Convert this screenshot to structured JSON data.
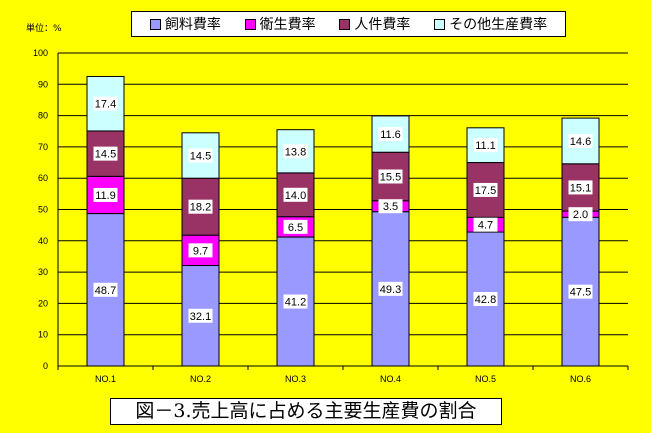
{
  "chart_data": {
    "type": "bar",
    "stacked": true,
    "unit_label": "単位：%",
    "title": "図－3.売上高に占める主要生産費の割合",
    "categories": [
      "NO.1",
      "NO.2",
      "NO.3",
      "NO.4",
      "NO.5",
      "NO.6"
    ],
    "series": [
      {
        "name": "飼料費率",
        "color": "#9999FF",
        "values": [
          48.7,
          32.1,
          41.2,
          49.3,
          42.8,
          47.5
        ]
      },
      {
        "name": "衛生費率",
        "color": "#FF00FF",
        "values": [
          11.9,
          9.7,
          6.5,
          3.5,
          4.7,
          2.0
        ]
      },
      {
        "name": "人件費率",
        "color": "#993366",
        "values": [
          14.5,
          18.2,
          14.0,
          15.5,
          17.5,
          15.1
        ]
      },
      {
        "name": "その他生産費率",
        "color": "#CCFFFF",
        "values": [
          17.4,
          14.5,
          13.8,
          11.6,
          11.1,
          14.6
        ]
      }
    ],
    "yticks": [
      "0",
      "10",
      "20",
      "30",
      "40",
      "50",
      "60",
      "70",
      "80",
      "90",
      "100"
    ],
    "ylim": [
      0,
      100
    ],
    "grid": true,
    "legend_position": "top"
  }
}
